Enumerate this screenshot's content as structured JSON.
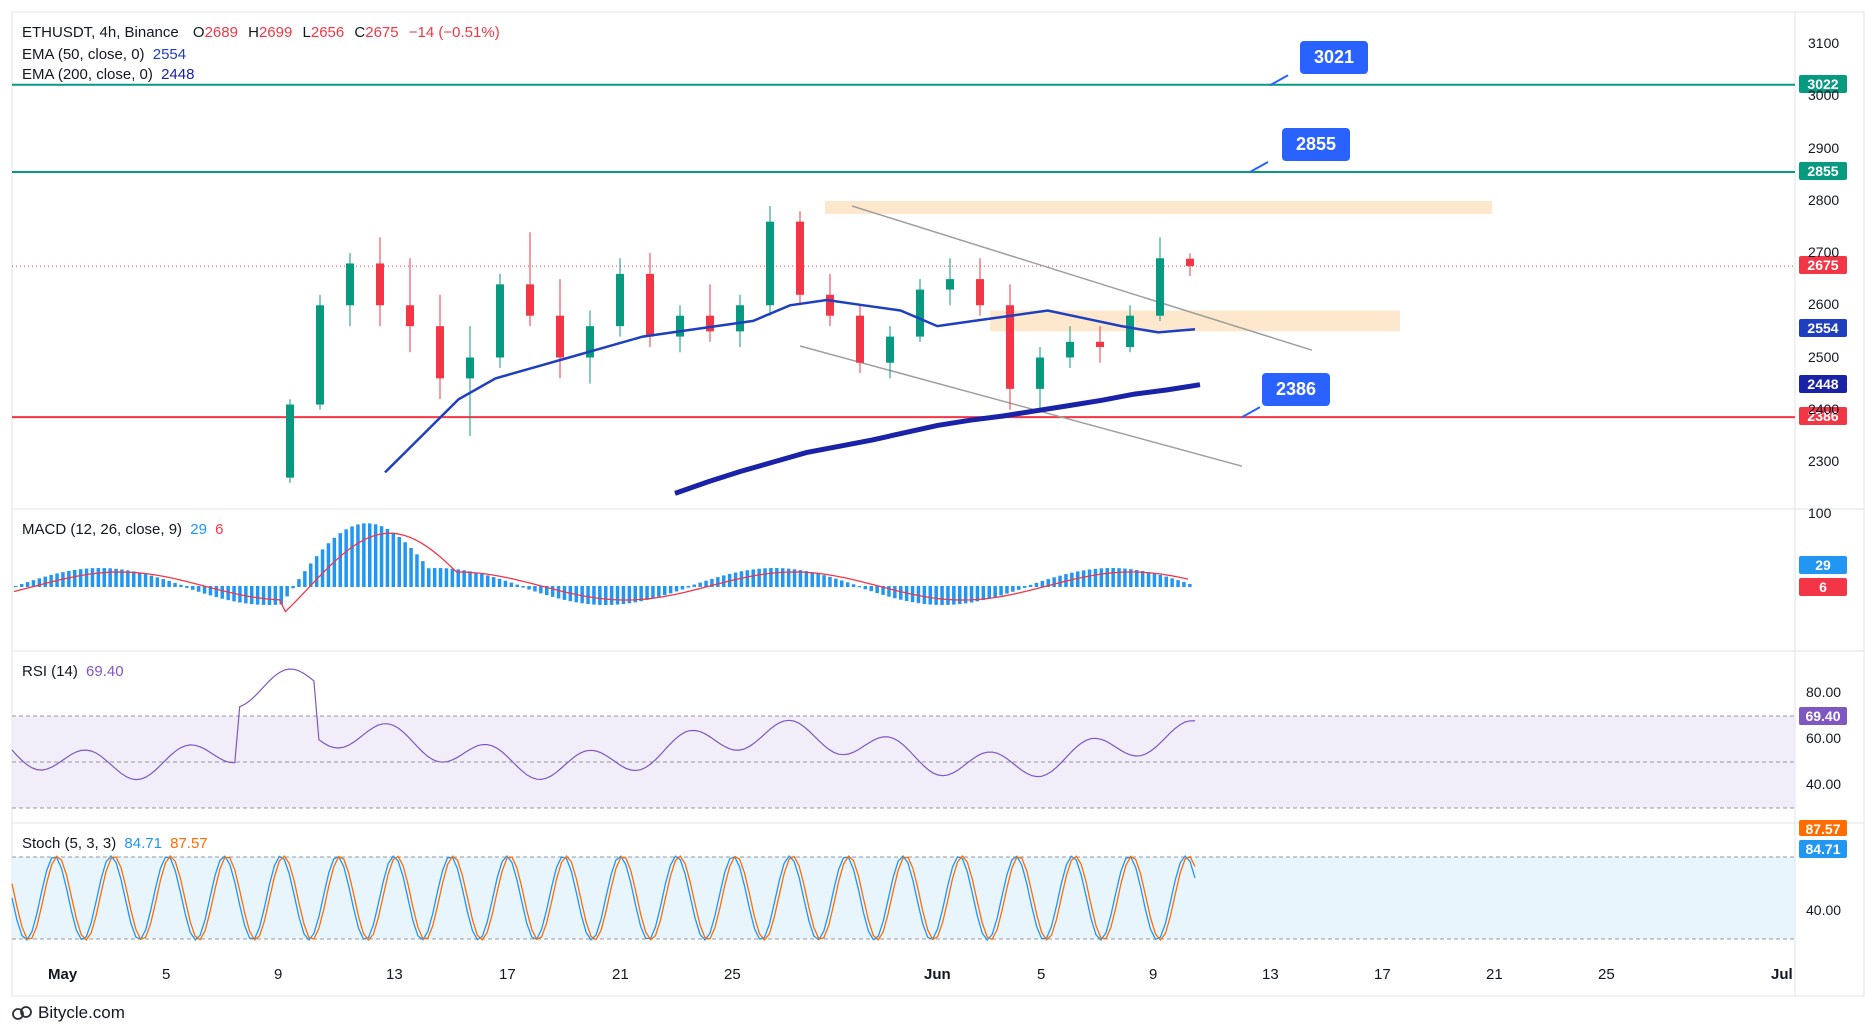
{
  "header": {
    "symbol": "ETHUSDT, 4h, Binance",
    "open_label": "O",
    "open": "2689",
    "high_label": "H",
    "high": "2699",
    "low_label": "L",
    "low": "2656",
    "close_label": "C",
    "close": "2675",
    "change": "−14 (−0.51%)"
  },
  "ema50": {
    "label": "EMA (50, close, 0)",
    "value": "2554",
    "color": "#1e3fbf"
  },
  "ema200": {
    "label": "EMA (200, close, 0)",
    "value": "2448",
    "color": "#1a22a8"
  },
  "macd": {
    "label": "MACD (12, 26, close, 9)",
    "v1": "29",
    "v2": "6",
    "tick_top": "100"
  },
  "rsi": {
    "label": "RSI (14)",
    "value": "69.40",
    "ticks": [
      "80.00",
      "60.00",
      "40.00"
    ]
  },
  "stoch": {
    "label": "Stoch (5, 3, 3)",
    "k": "84.71",
    "d": "87.57",
    "tick": "40.00"
  },
  "footer": {
    "brand": "Bitycle.com",
    "logo_icon": "bitycle-logo-icon"
  },
  "price_axis": {
    "ticks": [
      "3100",
      "3000",
      "2900",
      "2800",
      "2700",
      "2600",
      "2500",
      "2400",
      "2300"
    ],
    "tags": [
      {
        "text": "3022",
        "color": "#089981"
      },
      {
        "text": "2855",
        "color": "#089981"
      },
      {
        "text": "2675",
        "color": "#f23645"
      },
      {
        "text": "2554",
        "color": "#1e3fbf"
      },
      {
        "text": "2448",
        "color": "#1a22a8"
      },
      {
        "text": "2386",
        "color": "#f23645"
      }
    ]
  },
  "annotations": [
    {
      "text": "3021",
      "color": "#2962ff"
    },
    {
      "text": "2855",
      "color": "#2962ff"
    },
    {
      "text": "2386",
      "color": "#2962ff"
    }
  ],
  "time_axis": [
    "May",
    "5",
    "9",
    "13",
    "17",
    "21",
    "25",
    "Jun",
    "5",
    "9",
    "13",
    "17",
    "21",
    "25",
    "Jul"
  ],
  "chart_data": {
    "type": "candlestick",
    "symbol": "ETHUSDT",
    "interval": "4h",
    "ylim": [
      2240,
      3150
    ],
    "horizontal_levels": [
      {
        "value": 3022,
        "color": "#089981"
      },
      {
        "value": 2855,
        "color": "#089981"
      },
      {
        "value": 2386,
        "color": "#f23645"
      }
    ],
    "last_price": 2675,
    "zones": [
      {
        "from": "May 28",
        "to": "Jun 20",
        "low": 2765,
        "high": 2790,
        "color": "#fde4c6"
      },
      {
        "from": "Jun 3",
        "to": "Jun 18",
        "low": 2550,
        "high": 2590,
        "color": "#fde4c6"
      }
    ],
    "trendlines": [
      {
        "from": [
          "May 28",
          2790
        ],
        "to": [
          "Jun 14",
          2510
        ],
        "color": "#9e9e9e"
      },
      {
        "from": [
          "May 27",
          2520
        ],
        "to": [
          "Jun 12",
          2290
        ],
        "color": "#9e9e9e"
      }
    ],
    "candles_approx": [
      [
        2270,
        2420,
        2260,
        2410
      ],
      [
        2410,
        2620,
        2400,
        2600
      ],
      [
        2600,
        2700,
        2560,
        2680
      ],
      [
        2680,
        2730,
        2560,
        2600
      ],
      [
        2600,
        2690,
        2510,
        2560
      ],
      [
        2560,
        2620,
        2420,
        2460
      ],
      [
        2460,
        2560,
        2350,
        2500
      ],
      [
        2500,
        2660,
        2480,
        2640
      ],
      [
        2640,
        2740,
        2560,
        2580
      ],
      [
        2580,
        2650,
        2460,
        2500
      ],
      [
        2500,
        2590,
        2450,
        2560
      ],
      [
        2560,
        2690,
        2540,
        2660
      ],
      [
        2660,
        2700,
        2520,
        2540
      ],
      [
        2540,
        2600,
        2510,
        2580
      ],
      [
        2580,
        2640,
        2530,
        2550
      ],
      [
        2550,
        2620,
        2520,
        2600
      ],
      [
        2600,
        2790,
        2580,
        2760
      ],
      [
        2760,
        2780,
        2600,
        2620
      ],
      [
        2620,
        2660,
        2560,
        2580
      ],
      [
        2580,
        2600,
        2470,
        2490
      ],
      [
        2490,
        2560,
        2460,
        2540
      ],
      [
        2540,
        2650,
        2530,
        2630
      ],
      [
        2630,
        2690,
        2600,
        2650
      ],
      [
        2650,
        2690,
        2580,
        2600
      ],
      [
        2600,
        2640,
        2400,
        2440
      ],
      [
        2440,
        2520,
        2400,
        2500
      ],
      [
        2500,
        2560,
        2480,
        2530
      ],
      [
        2530,
        2560,
        2490,
        2520
      ],
      [
        2520,
        2600,
        2510,
        2580
      ],
      [
        2580,
        2730,
        2570,
        2690
      ],
      [
        2689,
        2699,
        2656,
        2675
      ]
    ],
    "ema50_approx": [
      2280,
      2350,
      2420,
      2460,
      2480,
      2500,
      2520,
      2540,
      2550,
      2560,
      2570,
      2600,
      2610,
      2600,
      2590,
      2560,
      2570,
      2580,
      2590,
      2575,
      2560,
      2548,
      2554
    ],
    "ema200_approx": [
      2240,
      2262,
      2282,
      2300,
      2318,
      2330,
      2342,
      2356,
      2370,
      2380,
      2388,
      2398,
      2408,
      2418,
      2430,
      2438,
      2448
    ]
  }
}
